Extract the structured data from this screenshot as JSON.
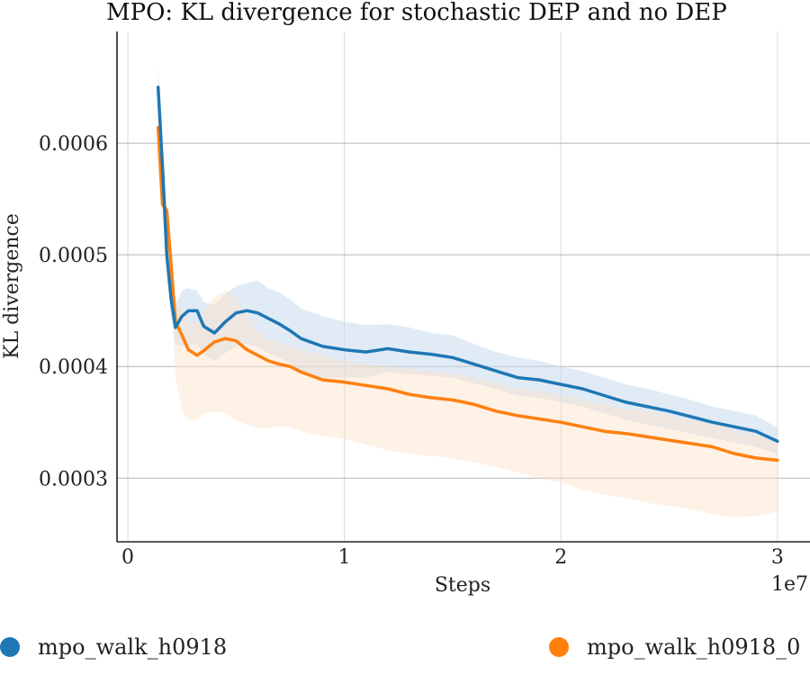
{
  "chart_data": {
    "type": "line",
    "title": "MPO: KL divergence for stochastic DEP and no DEP",
    "xlabel": "Steps",
    "ylabel": "KL divergence",
    "x_offset_label": "1e7",
    "xlim": [
      -0.05,
      3.15
    ],
    "ylim": [
      0.000243,
      0.0007
    ],
    "xticks": [
      0,
      1,
      2,
      3
    ],
    "xtick_labels": [
      "0",
      "1",
      "2",
      "3"
    ],
    "yticks": [
      0.0003,
      0.0004,
      0.0005,
      0.0006
    ],
    "ytick_labels": [
      "0.0003",
      "0.0004",
      "0.0005",
      "0.0006"
    ],
    "grid": true,
    "legend_position": "bottom",
    "series": [
      {
        "name": "mpo_walk_h0918",
        "color": "#1f77b4",
        "band_color": "#c6dbef",
        "x": [
          0.14,
          0.16,
          0.18,
          0.2,
          0.22,
          0.25,
          0.28,
          0.32,
          0.35,
          0.4,
          0.45,
          0.5,
          0.55,
          0.6,
          0.65,
          0.7,
          0.75,
          0.8,
          0.9,
          1.0,
          1.1,
          1.2,
          1.3,
          1.4,
          1.5,
          1.6,
          1.7,
          1.8,
          1.9,
          2.0,
          2.1,
          2.2,
          2.3,
          2.4,
          2.5,
          2.6,
          2.7,
          2.8,
          2.9,
          3.0
        ],
        "y": [
          0.00065,
          0.00058,
          0.0005,
          0.00046,
          0.000435,
          0.000445,
          0.00045,
          0.00045,
          0.000436,
          0.00043,
          0.00044,
          0.000448,
          0.00045,
          0.000448,
          0.000443,
          0.000438,
          0.000432,
          0.000425,
          0.000418,
          0.000415,
          0.000413,
          0.000416,
          0.000413,
          0.000411,
          0.000408,
          0.000402,
          0.000396,
          0.00039,
          0.000388,
          0.000384,
          0.00038,
          0.000374,
          0.000368,
          0.000364,
          0.00036,
          0.000355,
          0.00035,
          0.000346,
          0.000342,
          0.000333
        ],
        "lower": [
          0.000635,
          0.000565,
          0.000485,
          0.000443,
          0.00042,
          0.000418,
          0.00042,
          0.00042,
          0.00041,
          0.000405,
          0.000412,
          0.000418,
          0.00042,
          0.000418,
          0.000412,
          0.000408,
          0.000403,
          0.000396,
          0.00039,
          0.00039,
          0.00039,
          0.000395,
          0.000393,
          0.000392,
          0.00039,
          0.000385,
          0.00038,
          0.000374,
          0.000372,
          0.000368,
          0.000364,
          0.000358,
          0.000352,
          0.000348,
          0.000344,
          0.00034,
          0.000336,
          0.000332,
          0.000328,
          0.000322
        ],
        "upper": [
          0.00067,
          0.000595,
          0.000515,
          0.000477,
          0.000455,
          0.000468,
          0.00047,
          0.000468,
          0.000458,
          0.000455,
          0.000465,
          0.000472,
          0.000475,
          0.000477,
          0.00047,
          0.000466,
          0.00046,
          0.000452,
          0.000445,
          0.00044,
          0.000437,
          0.000438,
          0.000435,
          0.00043,
          0.000428,
          0.00042,
          0.000413,
          0.000408,
          0.000405,
          0.0004,
          0.000396,
          0.00039,
          0.000384,
          0.00038,
          0.000375,
          0.00037,
          0.000364,
          0.00036,
          0.000356,
          0.000345
        ]
      },
      {
        "name": "mpo_walk_h0918_0",
        "color": "#ff7f0e",
        "band_color": "#fde0c8",
        "x": [
          0.14,
          0.16,
          0.18,
          0.2,
          0.22,
          0.25,
          0.28,
          0.32,
          0.35,
          0.4,
          0.45,
          0.5,
          0.55,
          0.6,
          0.65,
          0.7,
          0.75,
          0.8,
          0.9,
          1.0,
          1.1,
          1.2,
          1.3,
          1.4,
          1.5,
          1.6,
          1.7,
          1.8,
          1.9,
          2.0,
          2.1,
          2.2,
          2.3,
          2.4,
          2.5,
          2.6,
          2.7,
          2.8,
          2.9,
          3.0
        ],
        "y": [
          0.000614,
          0.000545,
          0.00054,
          0.00049,
          0.00044,
          0.000428,
          0.000415,
          0.00041,
          0.000414,
          0.000422,
          0.000425,
          0.000423,
          0.000415,
          0.00041,
          0.000405,
          0.000402,
          0.0004,
          0.000395,
          0.000388,
          0.000386,
          0.000383,
          0.00038,
          0.000375,
          0.000372,
          0.00037,
          0.000366,
          0.00036,
          0.000356,
          0.000353,
          0.00035,
          0.000346,
          0.000342,
          0.00034,
          0.000337,
          0.000334,
          0.000331,
          0.000328,
          0.000322,
          0.000318,
          0.000316
        ],
        "lower": [
          0.0006,
          0.00053,
          0.00052,
          0.00047,
          0.00039,
          0.00036,
          0.000352,
          0.000352,
          0.000358,
          0.00036,
          0.000358,
          0.000352,
          0.000348,
          0.000345,
          0.000345,
          0.000346,
          0.000345,
          0.000342,
          0.000338,
          0.000335,
          0.00033,
          0.000325,
          0.000322,
          0.00032,
          0.000318,
          0.000314,
          0.00031,
          0.000305,
          0.0003,
          0.000296,
          0.00029,
          0.000285,
          0.000282,
          0.000278,
          0.000275,
          0.000272,
          0.000268,
          0.000265,
          0.000266,
          0.00027
        ],
        "upper": [
          0.000628,
          0.00056,
          0.000555,
          0.000505,
          0.00046,
          0.00045,
          0.00044,
          0.00044,
          0.00045,
          0.000462,
          0.000468,
          0.000462,
          0.000445,
          0.000432,
          0.000425,
          0.00042,
          0.000418,
          0.000415,
          0.00041,
          0.000405,
          0.000402,
          0.0004,
          0.000398,
          0.000396,
          0.000394,
          0.00039,
          0.000385,
          0.00038,
          0.000378,
          0.000374,
          0.00037,
          0.000366,
          0.000362,
          0.00036,
          0.000356,
          0.000352,
          0.000348,
          0.000343,
          0.000338,
          0.000334
        ]
      }
    ]
  }
}
